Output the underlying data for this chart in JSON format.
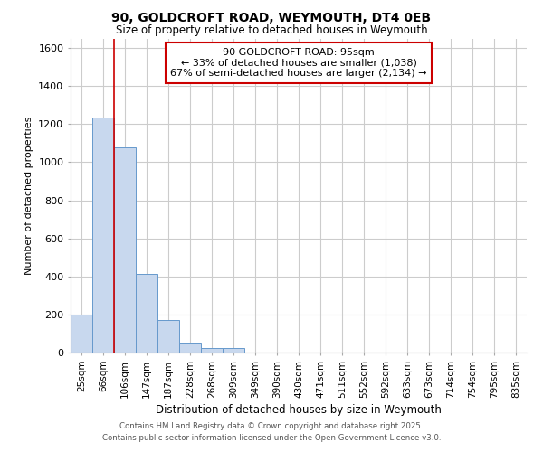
{
  "title": "90, GOLDCROFT ROAD, WEYMOUTH, DT4 0EB",
  "subtitle": "Size of property relative to detached houses in Weymouth",
  "xlabel": "Distribution of detached houses by size in Weymouth",
  "ylabel": "Number of detached properties",
  "categories": [
    "25sqm",
    "66sqm",
    "106sqm",
    "147sqm",
    "187sqm",
    "228sqm",
    "268sqm",
    "309sqm",
    "349sqm",
    "390sqm",
    "430sqm",
    "471sqm",
    "511sqm",
    "552sqm",
    "592sqm",
    "633sqm",
    "673sqm",
    "714sqm",
    "754sqm",
    "795sqm",
    "835sqm"
  ],
  "values": [
    200,
    1235,
    1080,
    415,
    170,
    50,
    25,
    25,
    0,
    0,
    0,
    0,
    0,
    0,
    0,
    0,
    0,
    0,
    0,
    0,
    0
  ],
  "bar_color": "#c8d8ee",
  "bar_edge_color": "#6699cc",
  "red_line_x": 1.5,
  "annotation_text": "90 GOLDCROFT ROAD: 95sqm\n← 33% of detached houses are smaller (1,038)\n67% of semi-detached houses are larger (2,134) →",
  "annotation_box_color": "#ffffff",
  "annotation_box_edge": "#cc0000",
  "ylim": [
    0,
    1650
  ],
  "yticks": [
    0,
    200,
    400,
    600,
    800,
    1000,
    1200,
    1400,
    1600
  ],
  "bg_color": "#ffffff",
  "plot_bg_color": "#ffffff",
  "grid_color": "#cccccc",
  "footer1": "Contains HM Land Registry data © Crown copyright and database right 2025.",
  "footer2": "Contains public sector information licensed under the Open Government Licence v3.0."
}
